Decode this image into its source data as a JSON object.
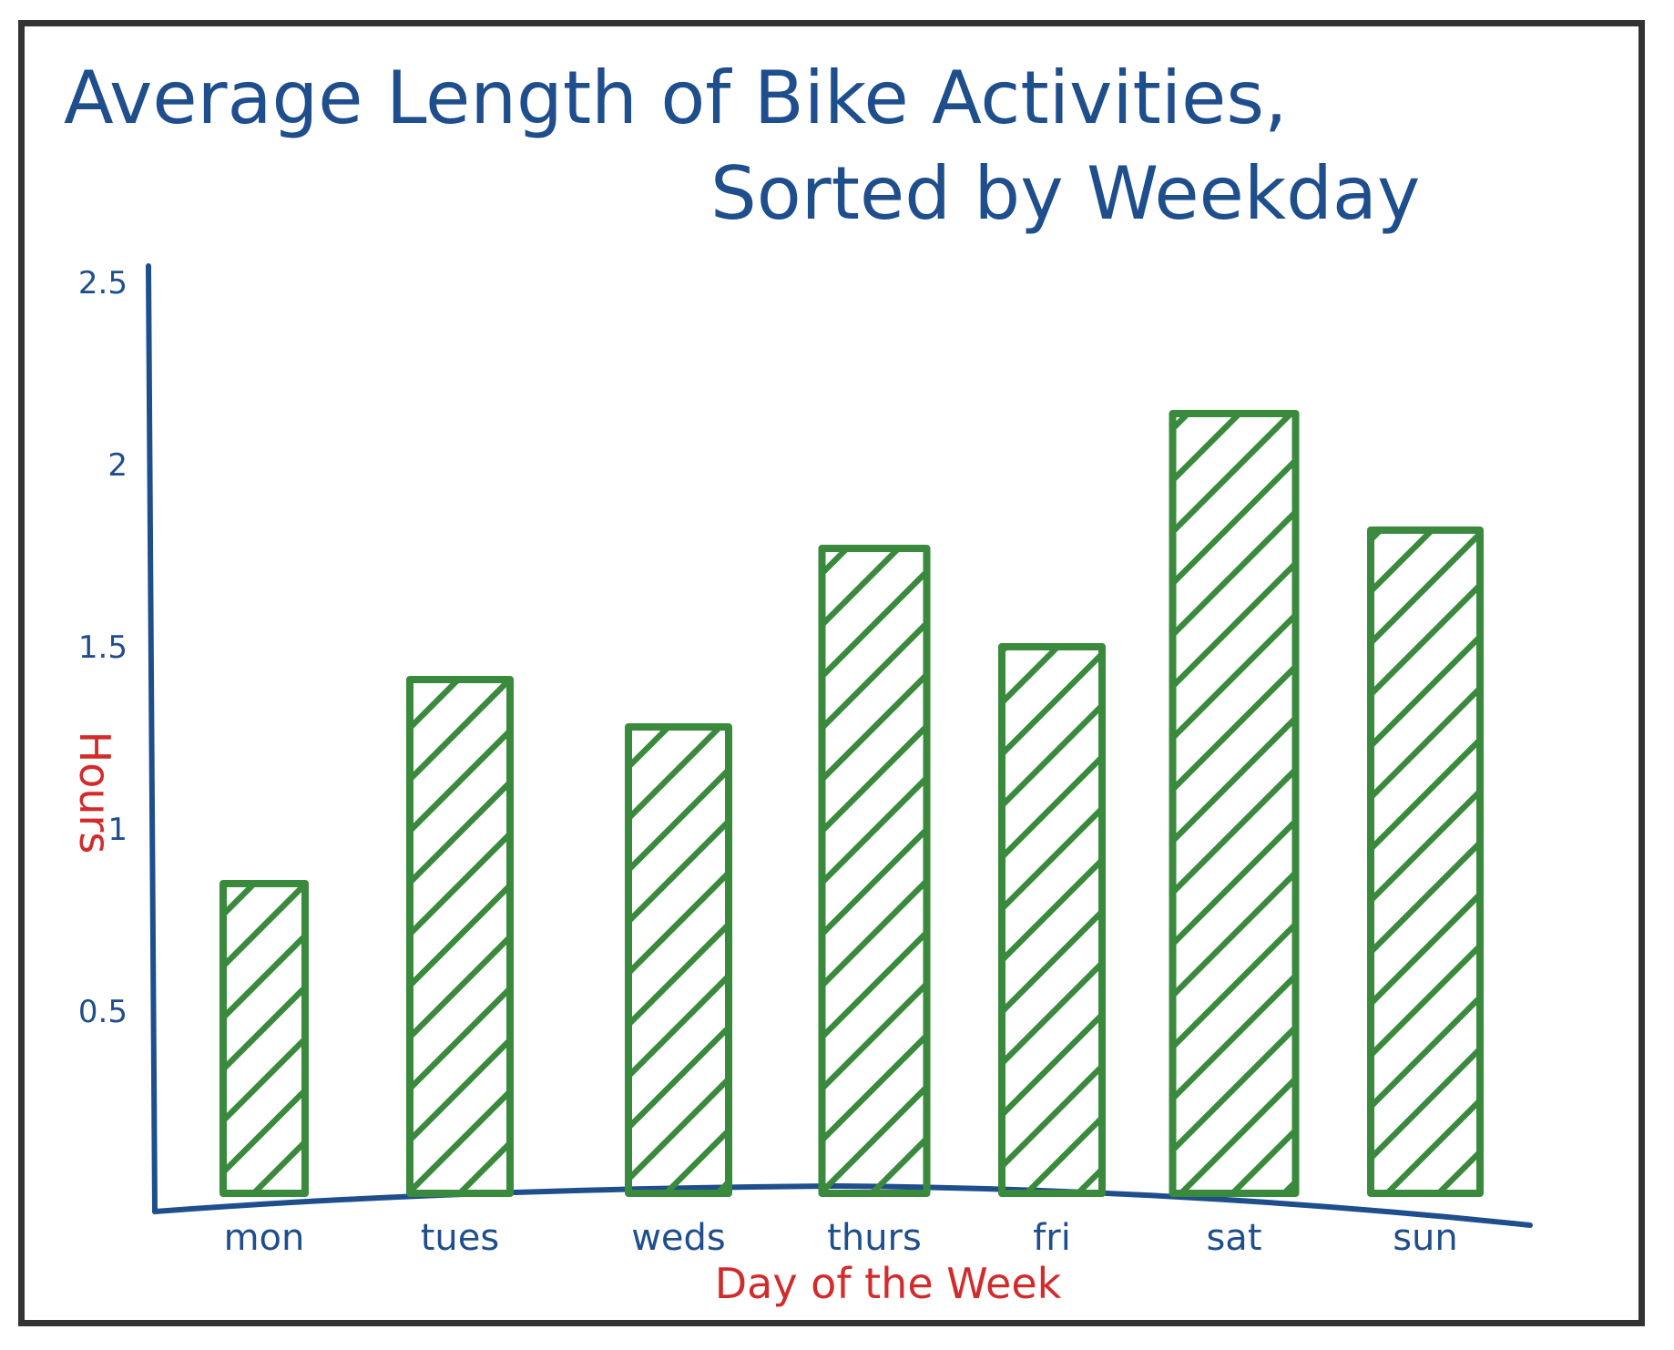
{
  "chart_data": {
    "type": "bar",
    "title_line1": "Average Length of Bike Activities,",
    "title_line2": "Sorted by Weekday",
    "xlabel": "Day of the Week",
    "ylabel": "Hours",
    "categories": [
      "mon",
      "tues",
      "weds",
      "thurs",
      "fri",
      "sat",
      "sun"
    ],
    "values": [
      0.85,
      1.41,
      1.28,
      1.77,
      1.5,
      2.14,
      1.82
    ],
    "ylim": [
      0,
      2.5
    ],
    "yticks": [
      "0.5",
      "1",
      "1.5",
      "2",
      "2.5"
    ],
    "ytick_values": [
      0.5,
      1,
      1.5,
      2,
      2.5
    ],
    "grid": false,
    "bar_pattern": "diagonal-hatch",
    "colors": {
      "bars": "#3a8a3e",
      "axes": "#1f4e8c",
      "title": "#1f4e8c",
      "axis_labels": "#d22b2b",
      "frame": "#333333"
    }
  }
}
